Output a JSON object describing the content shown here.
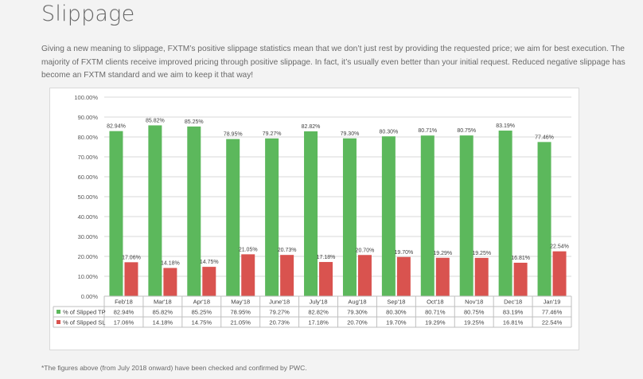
{
  "page": {
    "title": "Slippage",
    "intro": "Giving a new meaning to slippage, FXTM’s positive slippage statistics mean that we don’t just rest by providing the requested price; we aim for best execution. The majority of FXTM clients receive improved pricing through positive slippage. In fact, it’s usually even better than your initial request. Reduced negative slippage has become an FXTM standard and we aim to keep it that way!",
    "footnote": "*The figures above (from July 2018 onward) have been checked and confirmed by PWC."
  },
  "colors": {
    "tp": "#5cb85c",
    "sl": "#d9534f",
    "grid": "#d9d9d9"
  },
  "chart_data": {
    "type": "bar",
    "categories": [
      "Feb'18",
      "Mar'18",
      "Apr'18",
      "May'18",
      "June'18",
      "July'18",
      "Aug'18",
      "Sep'18",
      "Oct'18",
      "Nov'18",
      "Dec'18",
      "Jan'19"
    ],
    "ylim": [
      0,
      100
    ],
    "yticks": [
      "0.00%",
      "10.00%",
      "20.00%",
      "30.00%",
      "40.00%",
      "50.00%",
      "60.00%",
      "70.00%",
      "80.00%",
      "90.00%",
      "100.00%"
    ],
    "grid": true,
    "legend": "data-table",
    "series": [
      {
        "name": "% of Slipped TP",
        "values": [
          82.94,
          85.82,
          85.25,
          78.95,
          79.27,
          82.82,
          79.3,
          80.3,
          80.71,
          80.75,
          83.19,
          77.46
        ],
        "labels": [
          "82.94%",
          "85.82%",
          "85.25%",
          "78.95%",
          "79.27%",
          "82.82%",
          "79.30%",
          "80.30%",
          "80.71%",
          "80.75%",
          "83.19%",
          "77.46%"
        ]
      },
      {
        "name": "% of Slipped SL",
        "values": [
          17.06,
          14.18,
          14.75,
          21.05,
          20.73,
          17.18,
          20.7,
          19.7,
          19.29,
          19.25,
          16.81,
          22.54
        ],
        "labels": [
          "17.06%",
          "14.18%",
          "14.75%",
          "21.05%",
          "20.73%",
          "17.18%",
          "20.70%",
          "19.70%",
          "19.29%",
          "19.25%",
          "16.81%",
          "22.54%"
        ]
      }
    ]
  }
}
